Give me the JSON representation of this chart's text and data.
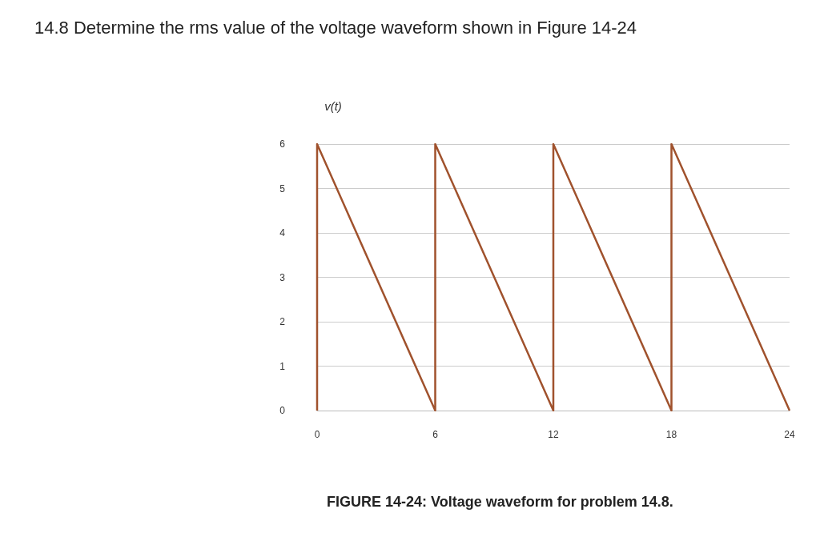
{
  "chart_data": {
    "type": "line",
    "title": "14.8 Determine the rms value of the voltage waveform shown in Figure 14-24",
    "ylabel": "v(t)",
    "x": [
      0,
      0,
      6,
      6,
      12,
      12,
      18,
      18,
      24
    ],
    "series": [
      {
        "color": "#a0522d",
        "values": [
          0,
          6,
          0,
          6,
          0,
          6,
          0,
          6,
          0
        ]
      }
    ],
    "xlim": [
      0,
      24
    ],
    "xticks": [
      0,
      6,
      12,
      18,
      24
    ],
    "ylim": [
      0,
      6
    ],
    "yticks": [
      0,
      1,
      2,
      3,
      4,
      5,
      6
    ],
    "grid": "y",
    "marker": "none",
    "line_style": "solid",
    "annotations": [
      "FIGURE 14-24: Voltage waveform for problem 14.8."
    ]
  }
}
